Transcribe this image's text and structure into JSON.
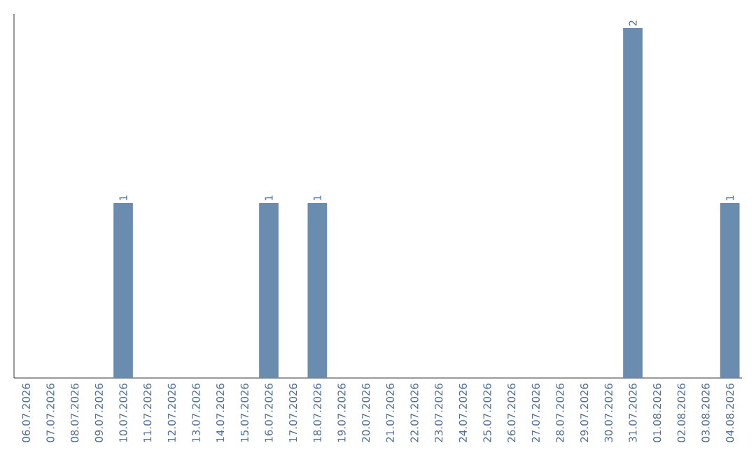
{
  "chart_data": {
    "type": "bar",
    "categories": [
      "06.07.2026",
      "07.07.2026",
      "08.07.2026",
      "09.07.2026",
      "10.07.2026",
      "11.07.2026",
      "12.07.2026",
      "13.07.2026",
      "14.07.2026",
      "15.07.2026",
      "16.07.2026",
      "17.07.2026",
      "18.07.2026",
      "19.07.2026",
      "20.07.2026",
      "21.07.2026",
      "22.07.2026",
      "23.07.2026",
      "24.07.2026",
      "25.07.2026",
      "26.07.2026",
      "27.07.2026",
      "28.07.2026",
      "29.07.2026",
      "30.07.2026",
      "31.07.2026",
      "01.08.2026",
      "02.08.2026",
      "03.08.2026",
      "04.08.2026"
    ],
    "values": [
      0,
      0,
      0,
      0,
      1,
      0,
      0,
      0,
      0,
      0,
      1,
      0,
      1,
      0,
      0,
      0,
      0,
      0,
      0,
      0,
      0,
      0,
      0,
      0,
      0,
      2,
      0,
      0,
      0,
      1
    ],
    "value_labels": [
      null,
      null,
      null,
      null,
      "1",
      null,
      null,
      null,
      null,
      null,
      "1",
      null,
      "1",
      null,
      null,
      null,
      null,
      null,
      null,
      null,
      null,
      null,
      null,
      null,
      null,
      "2",
      null,
      null,
      null,
      "1"
    ],
    "color": "#6a8caf",
    "tick_labels": "x",
    "grid": false
  }
}
